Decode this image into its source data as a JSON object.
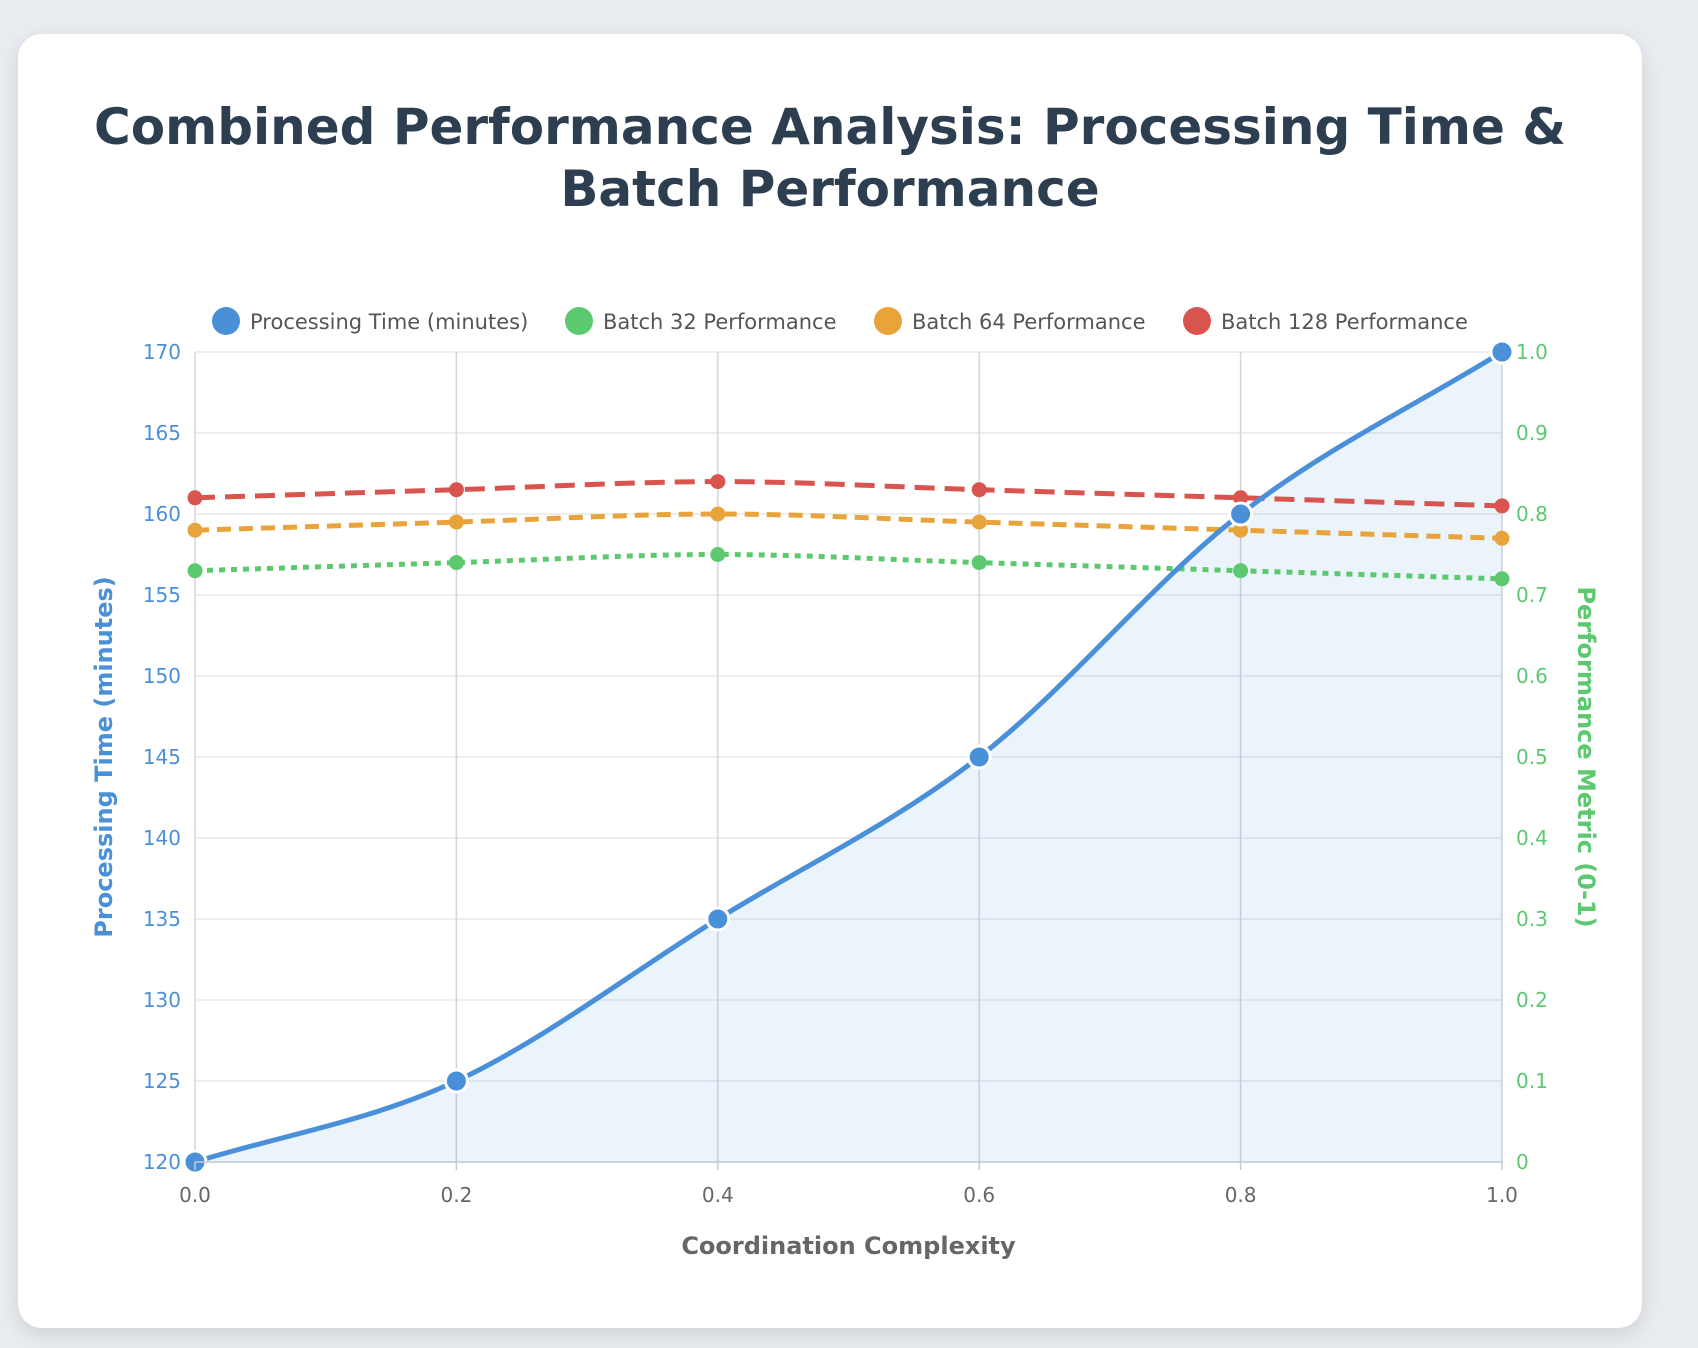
{
  "chart_data": {
    "type": "line",
    "title": "Combined Performance Analysis: Processing Time & Batch Performance",
    "xlabel": "Coordination Complexity",
    "ylabel_left": "Processing Time (minutes)",
    "ylabel_right": "Performance Metric (0-1)",
    "x": [
      0.0,
      0.2,
      0.4,
      0.6,
      0.8,
      1.0
    ],
    "x_ticks": [
      "0.0",
      "0.2",
      "0.4",
      "0.6",
      "0.8",
      "1.0"
    ],
    "y_left_range": [
      120,
      170
    ],
    "y_left_ticks": [
      "120",
      "125",
      "130",
      "135",
      "140",
      "145",
      "150",
      "155",
      "160",
      "165",
      "170"
    ],
    "y_right_range": [
      0,
      1
    ],
    "y_right_ticks": [
      "0",
      "0.1",
      "0.2",
      "0.3",
      "0.4",
      "0.5",
      "0.6",
      "0.7",
      "0.8",
      "0.9",
      "1.0"
    ],
    "grid": true,
    "legend_position": "top-center",
    "series": [
      {
        "name": "Processing Time (minutes)",
        "axis": "left",
        "color": "#4a90d9",
        "fill": true,
        "style": "solid",
        "values": [
          120,
          125,
          135,
          145,
          160,
          170
        ]
      },
      {
        "name": "Batch 32 Performance",
        "axis": "right",
        "color": "#5cc86f",
        "fill": false,
        "style": "dotted",
        "values": [
          0.73,
          0.74,
          0.75,
          0.74,
          0.73,
          0.72
        ]
      },
      {
        "name": "Batch 64 Performance",
        "axis": "right",
        "color": "#e8a43a",
        "fill": false,
        "style": "dashed",
        "values": [
          0.78,
          0.79,
          0.8,
          0.79,
          0.78,
          0.77
        ]
      },
      {
        "name": "Batch 128 Performance",
        "axis": "right",
        "color": "#d9534f",
        "fill": false,
        "style": "longdash",
        "values": [
          0.82,
          0.83,
          0.84,
          0.83,
          0.82,
          0.81
        ]
      }
    ]
  }
}
